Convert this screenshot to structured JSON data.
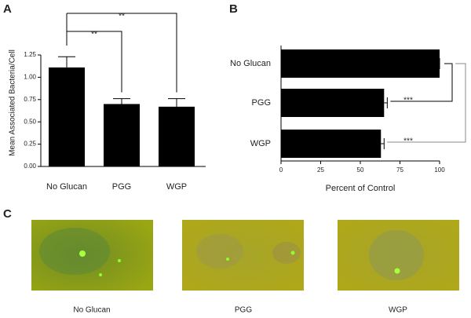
{
  "chart_data": [
    {
      "type": "bar",
      "panel_label": "A",
      "ylabel": "Mean Associated Bacteria/Cell",
      "categories": [
        "No Glucan",
        "PGG",
        "WGP"
      ],
      "values": [
        1.11,
        0.7,
        0.67
      ],
      "errors": [
        0.12,
        0.06,
        0.09
      ],
      "color": "#000000",
      "ylim": [
        0,
        1.25
      ],
      "yticks": [
        {
          "value": 0,
          "label": "0.00"
        },
        {
          "value": 0.25,
          "label": "0.25"
        },
        {
          "value": 0.5,
          "label": "0.50"
        },
        {
          "value": 0.75,
          "label": "0.75"
        },
        {
          "value": 1,
          "label": "1.00"
        },
        {
          "value": 1.25,
          "label": "1.25"
        }
      ],
      "annotations": [
        "**",
        "**"
      ]
    },
    {
      "type": "barh",
      "panel_label": "B",
      "xlabel": "Percent of Control",
      "categories": [
        "No Glucan",
        "PGG",
        "WGP"
      ],
      "values": [
        100,
        65,
        63
      ],
      "errors": [
        0,
        2,
        2
      ],
      "color": "#000000",
      "xlim": [
        0,
        100
      ],
      "xticks": [
        0,
        25,
        50,
        75,
        100
      ],
      "annotations": [
        "***",
        "***"
      ]
    }
  ],
  "panel_c": {
    "panel_label": "C",
    "captions": [
      "No Glucan",
      "PGG",
      "WGP"
    ]
  }
}
